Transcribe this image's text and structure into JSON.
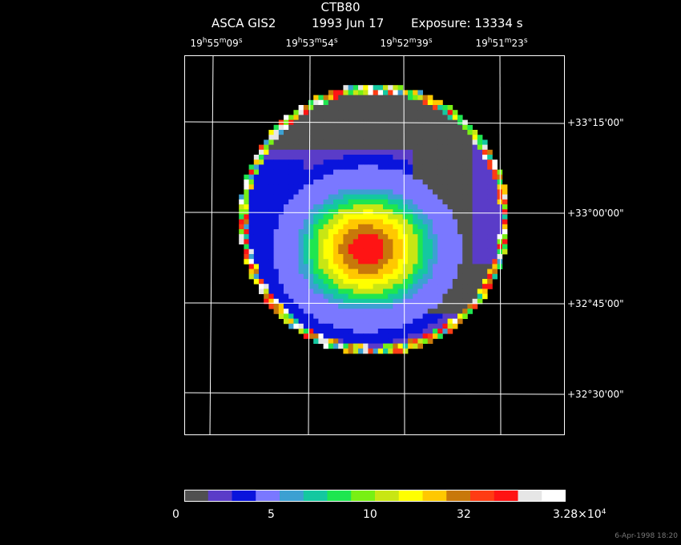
{
  "header": {
    "object": "CTB80",
    "instrument": "ASCA GIS2",
    "date": "1993 Jun 17",
    "exposure": "Exposure: 13334 s"
  },
  "ra_ticks": [
    {
      "h": "19",
      "m": "55",
      "s": "09"
    },
    {
      "h": "19",
      "m": "53",
      "s": "54"
    },
    {
      "h": "19",
      "m": "52",
      "s": "39"
    },
    {
      "h": "19",
      "m": "51",
      "s": "23"
    }
  ],
  "dec_ticks": [
    "+33°15'00\"",
    "+33°00'00\"",
    "+32°45'00\"",
    "+32°30'00\""
  ],
  "colorbar": {
    "labels": [
      "0",
      "5",
      "10",
      "32"
    ],
    "max_mantissa": "3.28×10",
    "max_exp": "4",
    "colors": [
      "#505050",
      "#5a3cc8",
      "#0a14dc",
      "#7a78ff",
      "#3ca0d2",
      "#14c8a0",
      "#1ee650",
      "#78f014",
      "#c8e614",
      "#ffff00",
      "#ffc800",
      "#c8780a",
      "#ff3c14",
      "#ff1414",
      "#e6e6e6",
      "#ffffff"
    ]
  },
  "footer": "6-Apr-1998 18:20"
}
